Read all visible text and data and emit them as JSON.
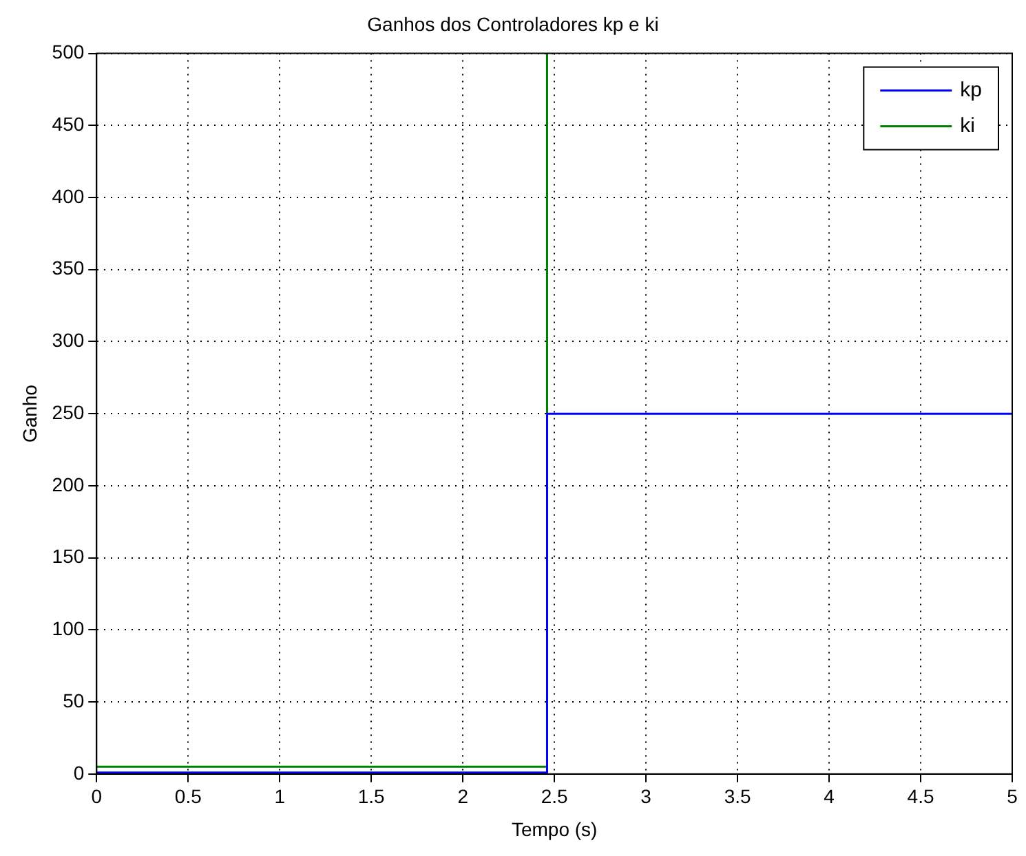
{
  "chart_data": {
    "type": "line",
    "title": "Ganhos dos Controladores kp e ki",
    "xlabel": "Tempo (s)",
    "ylabel": "Ganho",
    "series": [
      {
        "name": "kp",
        "color": "#0000ff",
        "x": [
          0,
          2.46,
          2.46,
          5
        ],
        "values": [
          1,
          1,
          250,
          250
        ]
      },
      {
        "name": "ki",
        "color": "#008000",
        "x": [
          0,
          2.46,
          2.46
        ],
        "values": [
          5,
          5,
          500
        ]
      }
    ],
    "xlim": [
      0,
      5
    ],
    "xticks": [
      0,
      0.5,
      1,
      1.5,
      2,
      2.5,
      3,
      3.5,
      4,
      4.5,
      5
    ],
    "ylim": [
      0,
      500
    ],
    "yticks": [
      0,
      50,
      100,
      150,
      200,
      250,
      300,
      350,
      400,
      450,
      500
    ],
    "grid": true,
    "legend": "top right",
    "marker": "none",
    "line_style": "solid"
  }
}
